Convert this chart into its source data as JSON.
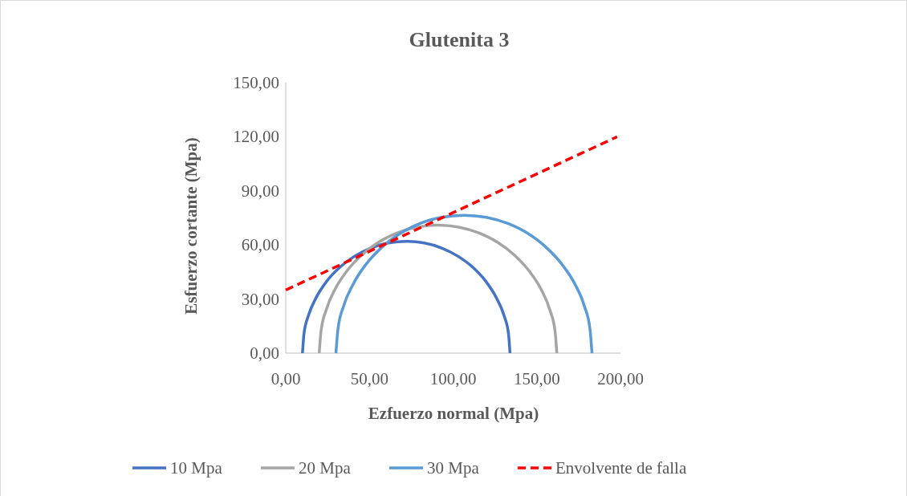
{
  "chart_data": {
    "type": "line",
    "title": "Glutenita 3",
    "xlabel": "Ezfuerzo normal (Mpa)",
    "ylabel": "Esfuerzo cortante (Mpa)",
    "xlim": [
      0,
      200
    ],
    "ylim": [
      0,
      150
    ],
    "xticks": [
      {
        "value": 0,
        "label": "0,00"
      },
      {
        "value": 50,
        "label": "50,00"
      },
      {
        "value": 100,
        "label": "100,00"
      },
      {
        "value": 150,
        "label": "150,00"
      },
      {
        "value": 200,
        "label": "200,00"
      }
    ],
    "yticks": [
      {
        "value": 0,
        "label": "0,00"
      },
      {
        "value": 30,
        "label": "30,00"
      },
      {
        "value": 60,
        "label": "60,00"
      },
      {
        "value": 90,
        "label": "90,00"
      },
      {
        "value": 120,
        "label": "120,00"
      },
      {
        "value": 150,
        "label": "150,00"
      }
    ],
    "grid": false,
    "legend": "bottom",
    "marker": "none",
    "series": [
      {
        "name": "10 Mpa",
        "color": "#4472c4",
        "line_style": "solid",
        "x": [
          10,
          10.9,
          13.7,
          18.3,
          24.5,
          32.2,
          41,
          50.8,
          61.2,
          72,
          82.8,
          93.2,
          103,
          111.9,
          119.5,
          125.7,
          130.3,
          133.1,
          134
        ],
        "values": [
          0,
          10.8,
          21.2,
          31,
          39.9,
          47.5,
          53.7,
          58.3,
          61.1,
          62,
          61.1,
          58.3,
          53.7,
          47.5,
          39.9,
          31,
          21.2,
          10.8,
          0
        ]
      },
      {
        "name": "20 Mpa",
        "color": "#a5a5a5",
        "line_style": "solid",
        "x": [
          20,
          21.1,
          24.3,
          29.5,
          36.6,
          45.4,
          55.5,
          66.7,
          78.7,
          91,
          103.3,
          115.3,
          126.5,
          136.6,
          145.4,
          152.5,
          157.7,
          160.9,
          162
        ],
        "values": [
          0,
          12.3,
          24.3,
          35.5,
          45.6,
          54.4,
          61.5,
          66.7,
          69.9,
          71,
          69.9,
          66.7,
          61.5,
          54.4,
          45.6,
          35.5,
          24.3,
          12.3,
          0
        ]
      },
      {
        "name": "30 Mpa",
        "color": "#5b9bd5",
        "line_style": "solid",
        "x": [
          30,
          31.2,
          34.6,
          40.3,
          47.9,
          57.3,
          68.3,
          80.3,
          93.2,
          106.5,
          119.8,
          132.7,
          144.8,
          155.7,
          165.1,
          172.8,
          178.4,
          181.8,
          183
        ],
        "values": [
          0,
          13.3,
          26.2,
          38.3,
          49.2,
          58.6,
          66.3,
          71.9,
          75.3,
          76.5,
          75.3,
          71.9,
          66.3,
          58.6,
          49.2,
          38.3,
          26.2,
          13.3,
          0
        ]
      },
      {
        "name": "Envolvente de falla",
        "color": "#ff0000",
        "line_style": "dashed",
        "x": [
          0,
          198
        ],
        "values": [
          35,
          120
        ]
      }
    ]
  }
}
